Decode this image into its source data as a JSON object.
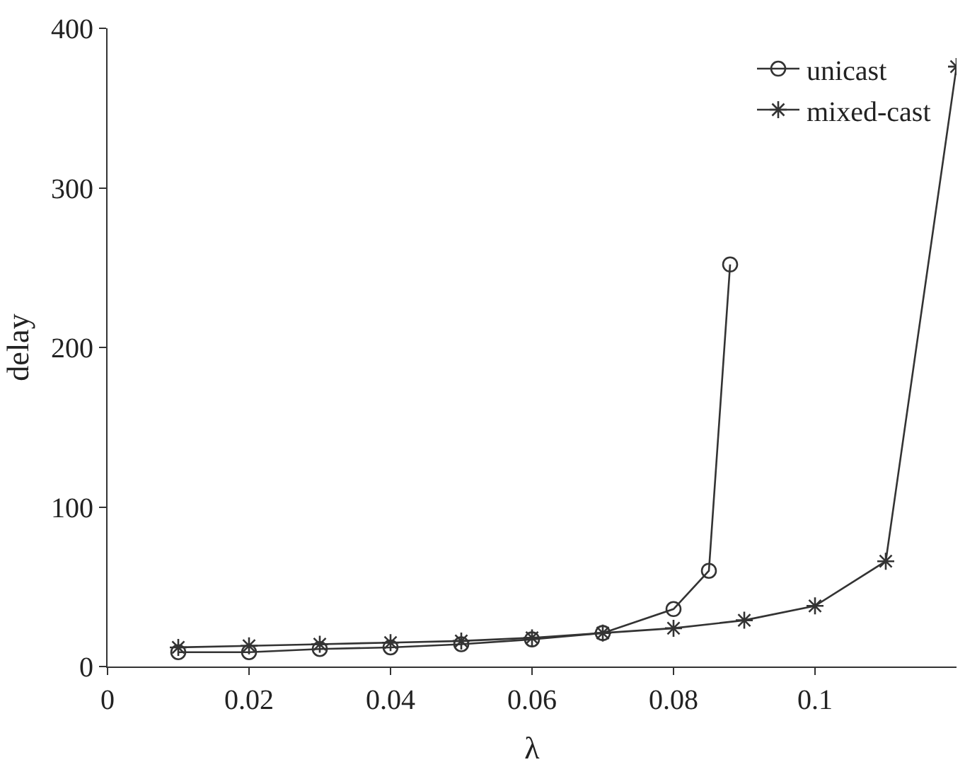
{
  "chart_data": {
    "type": "line",
    "xlabel": "λ",
    "ylabel": "delay",
    "xlim": [
      0,
      0.12
    ],
    "ylim": [
      0,
      400
    ],
    "xticks": [
      0,
      0.02,
      0.04,
      0.06,
      0.08,
      0.1
    ],
    "yticks": [
      0,
      100,
      200,
      300,
      400
    ],
    "legend": "top right",
    "line_style": "solid",
    "series": [
      {
        "name": "unicast",
        "color": "#333333",
        "marker": "circle",
        "x": [
          0.01,
          0.02,
          0.03,
          0.04,
          0.05,
          0.06,
          0.07,
          0.08,
          0.085,
          0.088
        ],
        "values": [
          9,
          9,
          11,
          12,
          14,
          17,
          21,
          36,
          60,
          252
        ]
      },
      {
        "name": "mixed-cast",
        "color": "#333333",
        "marker": "cross",
        "x": [
          0.01,
          0.02,
          0.03,
          0.04,
          0.05,
          0.06,
          0.07,
          0.08,
          0.09,
          0.1,
          0.11,
          0.12
        ],
        "values": [
          12,
          13,
          14,
          15,
          16,
          18,
          21,
          24,
          29,
          38,
          66,
          376
        ]
      }
    ]
  }
}
